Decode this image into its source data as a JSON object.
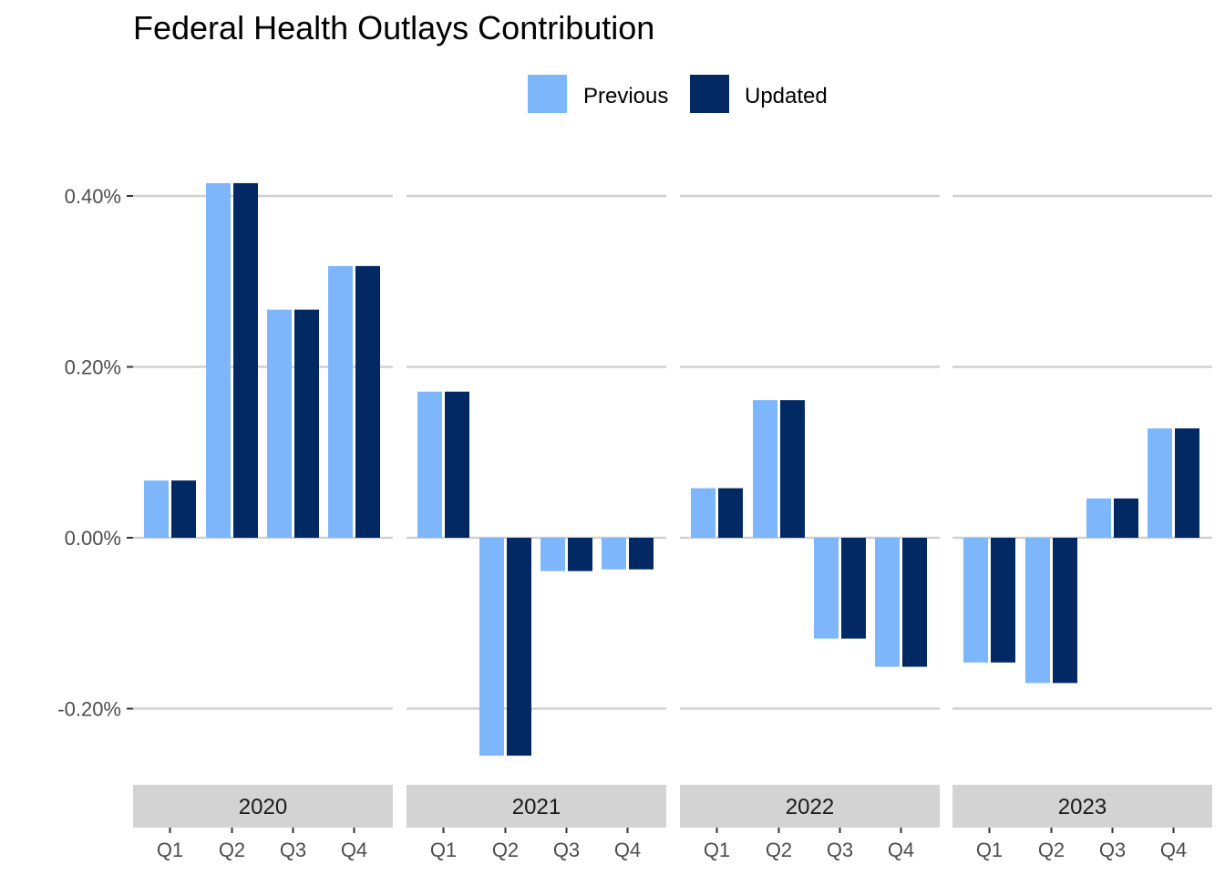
{
  "chart_data": {
    "type": "bar",
    "title": "Federal Health Outlays Contribution",
    "xlabel": "",
    "ylabel": "",
    "y_tick_labels": [
      "0.40%",
      "0.20%",
      "0.00%",
      "-0.20%"
    ],
    "y_ticks": [
      0.4,
      0.2,
      0.0,
      -0.2
    ],
    "ylim": [
      -0.285,
      0.4
    ],
    "grid": true,
    "legend_position": "top",
    "facets": [
      "2020",
      "2021",
      "2022",
      "2023"
    ],
    "categories": [
      "Q1",
      "Q2",
      "Q3",
      "Q4"
    ],
    "series": [
      {
        "name": "Previous",
        "color": "#7eb6fc",
        "values": [
          [
            0.067,
            0.415,
            0.267,
            0.318
          ],
          [
            0.171,
            -0.255,
            -0.039,
            -0.037
          ],
          [
            0.058,
            0.161,
            -0.118,
            -0.151
          ],
          [
            -0.146,
            -0.17,
            0.046,
            0.128
          ]
        ]
      },
      {
        "name": "Updated",
        "color": "#032965",
        "values": [
          [
            0.067,
            0.415,
            0.267,
            0.318
          ],
          [
            0.171,
            -0.255,
            -0.039,
            -0.037
          ],
          [
            0.058,
            0.161,
            -0.118,
            -0.151
          ],
          [
            -0.146,
            -0.17,
            0.046,
            0.128
          ]
        ]
      }
    ]
  }
}
